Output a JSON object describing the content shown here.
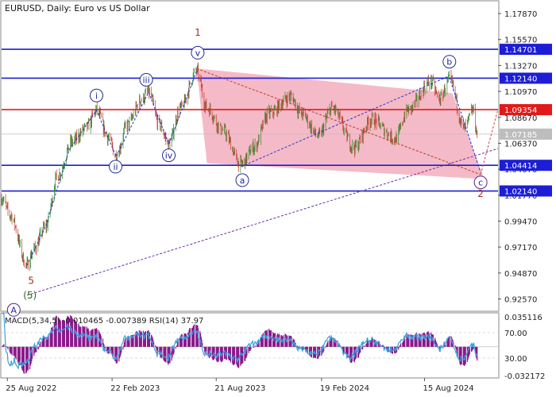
{
  "chart_data": {
    "type": "candlestick",
    "title": "EURUSD, Daily:  Euro vs US Dollar",
    "price_axis": {
      "range": [
        0.9155,
        1.1893
      ],
      "ticks": [
        "1.17870",
        "1.15570",
        "1.13270",
        "1.10970",
        "1.08670",
        "1.06370",
        "1.04070",
        "1.01770",
        "0.99470",
        "0.97170",
        "0.94870",
        "0.92570"
      ],
      "tick_values": [
        1.1787,
        1.1557,
        1.1327,
        1.1097,
        1.0867,
        1.0637,
        1.0407,
        1.0177,
        0.9947,
        0.9717,
        0.9487,
        0.9257
      ]
    },
    "time_axis": {
      "start": "2022-08-15",
      "end": "2024-12-20",
      "labels": [
        "25 Aug 2022",
        "22 Feb 2023",
        "21 Aug 2023",
        "19 Feb 2024",
        "15 Aug 2024"
      ],
      "label_dates": [
        "2022-08-25",
        "2023-02-22",
        "2023-08-21",
        "2024-02-19",
        "2024-08-15"
      ]
    },
    "price_anchors": [
      {
        "date": "2022-08-15",
        "price": 1.015
      },
      {
        "date": "2022-08-30",
        "price": 1.0
      },
      {
        "date": "2022-09-28",
        "price": 0.9555
      },
      {
        "date": "2022-10-10",
        "price": 0.97
      },
      {
        "date": "2022-10-30",
        "price": 0.99
      },
      {
        "date": "2022-11-20",
        "price": 1.035
      },
      {
        "date": "2022-12-15",
        "price": 1.065
      },
      {
        "date": "2023-01-10",
        "price": 1.078
      },
      {
        "date": "2023-01-26",
        "price": 1.093
      },
      {
        "date": "2023-02-15",
        "price": 1.069
      },
      {
        "date": "2023-03-01",
        "price": 1.052
      },
      {
        "date": "2023-03-20",
        "price": 1.08
      },
      {
        "date": "2023-04-15",
        "price": 1.103
      },
      {
        "date": "2023-04-26",
        "price": 1.109
      },
      {
        "date": "2023-05-15",
        "price": 1.08
      },
      {
        "date": "2023-05-31",
        "price": 1.063
      },
      {
        "date": "2023-06-20",
        "price": 1.095
      },
      {
        "date": "2023-07-18",
        "price": 1.1275
      },
      {
        "date": "2023-08-05",
        "price": 1.095
      },
      {
        "date": "2023-09-01",
        "price": 1.075
      },
      {
        "date": "2023-10-03",
        "price": 1.0448
      },
      {
        "date": "2023-10-25",
        "price": 1.06
      },
      {
        "date": "2023-11-20",
        "price": 1.09
      },
      {
        "date": "2023-12-28",
        "price": 1.105
      },
      {
        "date": "2024-01-15",
        "price": 1.09
      },
      {
        "date": "2024-02-14",
        "price": 1.07
      },
      {
        "date": "2024-03-08",
        "price": 1.095
      },
      {
        "date": "2024-04-16",
        "price": 1.06
      },
      {
        "date": "2024-05-15",
        "price": 1.085
      },
      {
        "date": "2024-06-26",
        "price": 1.068
      },
      {
        "date": "2024-07-17",
        "price": 1.093
      },
      {
        "date": "2024-08-26",
        "price": 1.118
      },
      {
        "date": "2024-09-10",
        "price": 1.103
      },
      {
        "date": "2024-09-27",
        "price": 1.12
      },
      {
        "date": "2024-10-23",
        "price": 1.077
      },
      {
        "date": "2024-11-07",
        "price": 1.093
      },
      {
        "date": "2024-11-14",
        "price": 1.072
      }
    ],
    "current_price": "1.07185",
    "horizontal_levels": [
      {
        "label": "1.14701",
        "value": 1.14701,
        "color": "#1d1dd6"
      },
      {
        "label": "1.12140",
        "value": 1.1214,
        "color": "#1d1dd6"
      },
      {
        "label": "1.09354",
        "value": 1.09354,
        "color": "#e01a1a"
      },
      {
        "label": "1.04414",
        "value": 1.04414,
        "color": "#1d1dd6"
      },
      {
        "label": "1.02140",
        "value": 1.0214,
        "color": "#1d1dd6"
      }
    ],
    "channel": {
      "color": "#f2a3b4",
      "corners": [
        {
          "date": "2023-07-18",
          "price": 1.13
        },
        {
          "date": "2024-10-02",
          "price": 1.108
        },
        {
          "date": "2024-11-26",
          "price": 1.032
        },
        {
          "date": "2023-08-05",
          "price": 1.046
        }
      ]
    },
    "trend_lines": [
      {
        "from": {
          "date": "2022-09-28",
          "price": 0.929
        },
        "to": {
          "date": "2024-12-20",
          "price": 1.059
        },
        "color": "#6a2fa8"
      },
      {
        "from": {
          "date": "2023-10-03",
          "price": 1.043
        },
        "to": {
          "date": "2024-09-25",
          "price": 1.123
        },
        "color": "#2a35c8"
      },
      {
        "from": {
          "date": "2023-07-18",
          "price": 1.13
        },
        "to": {
          "date": "2024-11-20",
          "price": 1.036
        },
        "color": "#c0392b"
      },
      {
        "from": {
          "date": "2024-11-20",
          "price": 1.036
        },
        "to": {
          "date": "2024-12-20",
          "price": 1.094
        },
        "color": "#d64545"
      }
    ],
    "wave_path": {
      "color": "#2a35c8",
      "points": [
        {
          "date": "2022-09-28",
          "price": 0.9555
        },
        {
          "date": "2022-10-30",
          "price": 0.99
        },
        {
          "date": "2022-12-10",
          "price": 1.058
        },
        {
          "date": "2023-01-26",
          "price": 1.093
        },
        {
          "date": "2023-03-01",
          "price": 1.052
        },
        {
          "date": "2023-04-26",
          "price": 1.109
        },
        {
          "date": "2023-05-31",
          "price": 1.063
        },
        {
          "date": "2023-07-18",
          "price": 1.1275
        }
      ]
    },
    "wave_c_path": {
      "color": "#2a35c8",
      "points": [
        {
          "date": "2024-09-27",
          "price": 1.122
        },
        {
          "date": "2024-11-20",
          "price": 1.038
        }
      ]
    },
    "wave_labels": [
      {
        "text": "i",
        "date": "2023-01-26",
        "price": 1.106,
        "style": "circle"
      },
      {
        "text": "ii",
        "date": "2023-02-28",
        "price": 1.043,
        "style": "circle"
      },
      {
        "text": "iii",
        "date": "2023-04-22",
        "price": 1.12,
        "style": "circle"
      },
      {
        "text": "iv",
        "date": "2023-05-31",
        "price": 1.053,
        "style": "circle"
      },
      {
        "text": "v",
        "date": "2023-07-20",
        "price": 1.144,
        "style": "circle"
      },
      {
        "text": "1",
        "date": "2023-07-20",
        "price": 1.162,
        "style": "red"
      },
      {
        "text": "a",
        "date": "2023-10-05",
        "price": 1.031,
        "style": "circle"
      },
      {
        "text": "b",
        "date": "2024-09-27",
        "price": 1.136,
        "style": "circle"
      },
      {
        "text": "c",
        "date": "2024-11-20",
        "price": 1.029,
        "style": "circle-purple"
      },
      {
        "text": "2",
        "date": "2024-11-20",
        "price": 1.019,
        "style": "red"
      },
      {
        "text": "5",
        "date": "2022-10-05",
        "price": 0.942,
        "style": "red"
      },
      {
        "text": "(5)",
        "date": "2022-10-03",
        "price": 0.929,
        "style": "green"
      },
      {
        "text": "A",
        "date": "2022-09-05",
        "price": 0.916,
        "style": "circle-purple"
      }
    ],
    "indicator": {
      "label": "MACD(5,34,5) -0.010465 -0.007389 RSI(14) 37.97",
      "ticks": [
        "0.035116",
        "70.00",
        "30.00",
        "-0.032172"
      ],
      "macd_range": [
        -0.032172,
        0.035116
      ],
      "rsi_levels": [
        70,
        30
      ],
      "macd_color": "#8b1a8b",
      "rsi_color": "#3aa0e0"
    },
    "colors": {
      "bull": "#2e8b2e",
      "bear": "#c0392b",
      "grid": "#d0d0d0",
      "current_price": "#bdbdbd"
    }
  }
}
